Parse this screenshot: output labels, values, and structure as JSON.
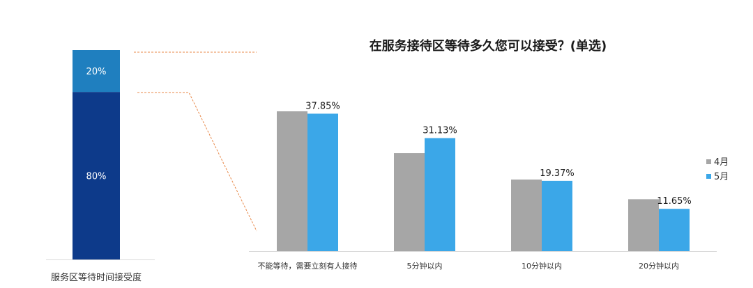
{
  "colors": {
    "april": "#a6a6a6",
    "may": "#3ba7e8",
    "stack_top": "#1f7fbf",
    "stack_bottom": "#0d3a8a",
    "connector": "#e8894a"
  },
  "chart_data": [
    {
      "type": "stacked-bar",
      "caption": "服务区等待时间接受度",
      "segments": [
        {
          "label": "20%",
          "value": 20
        },
        {
          "label": "80%",
          "value": 80
        }
      ]
    },
    {
      "type": "bar",
      "title": "在服务接待区等待多久您可以接受？(单选)",
      "categories": [
        "不能等待，需要立刻有人接待",
        "5分钟以内",
        "10分钟以内",
        "20分钟以内"
      ],
      "series": [
        {
          "name": "4月",
          "values": [
            38.5,
            27.0,
            19.7,
            14.3
          ]
        },
        {
          "name": "5月",
          "values": [
            37.85,
            31.13,
            19.37,
            11.65
          ],
          "labels": [
            "37.85%",
            "31.13%",
            "19.37%",
            "11.65%"
          ]
        }
      ],
      "ylim": [
        0,
        50
      ],
      "legend": "right",
      "grid": false
    }
  ]
}
